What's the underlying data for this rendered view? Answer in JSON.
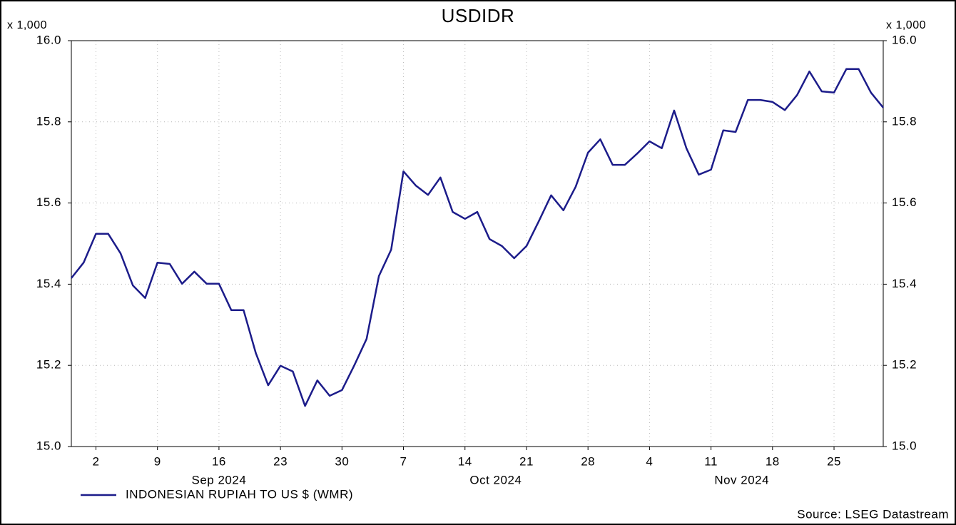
{
  "chart_data": {
    "type": "line",
    "title": "USDIDR",
    "y_unit_label": "x 1,000",
    "source": "Source: LSEG Datastream",
    "x": [
      "2024-08-29",
      "2024-08-30",
      "2024-09-02",
      "2024-09-03",
      "2024-09-04",
      "2024-09-05",
      "2024-09-06",
      "2024-09-09",
      "2024-09-10",
      "2024-09-11",
      "2024-09-12",
      "2024-09-13",
      "2024-09-16",
      "2024-09-17",
      "2024-09-18",
      "2024-09-19",
      "2024-09-20",
      "2024-09-23",
      "2024-09-24",
      "2024-09-25",
      "2024-09-26",
      "2024-09-27",
      "2024-09-30",
      "2024-10-01",
      "2024-10-02",
      "2024-10-03",
      "2024-10-04",
      "2024-10-07",
      "2024-10-08",
      "2024-10-09",
      "2024-10-10",
      "2024-10-11",
      "2024-10-14",
      "2024-10-15",
      "2024-10-16",
      "2024-10-17",
      "2024-10-18",
      "2024-10-21",
      "2024-10-22",
      "2024-10-23",
      "2024-10-24",
      "2024-10-25",
      "2024-10-28",
      "2024-10-29",
      "2024-10-30",
      "2024-10-31",
      "2024-11-01",
      "2024-11-04",
      "2024-11-05",
      "2024-11-06",
      "2024-11-07",
      "2024-11-08",
      "2024-11-11",
      "2024-11-12",
      "2024-11-13",
      "2024-11-14",
      "2024-11-15",
      "2024-11-18",
      "2024-11-19",
      "2024-11-20",
      "2024-11-21",
      "2024-11-22",
      "2024-11-25",
      "2024-11-26",
      "2024-11-27",
      "2024-11-28",
      "2024-11-29"
    ],
    "series": [
      {
        "name": "INDONESIAN RUPIAH TO US $ (WMR)",
        "color": "#1c1c8a",
        "values": [
          15.415,
          15.453,
          15.524,
          15.524,
          15.476,
          15.397,
          15.366,
          15.453,
          15.45,
          15.401,
          15.431,
          15.401,
          15.401,
          15.336,
          15.336,
          15.23,
          15.151,
          15.199,
          15.185,
          15.1,
          15.163,
          15.125,
          15.139,
          15.2,
          15.265,
          15.42,
          15.485,
          15.678,
          15.643,
          15.62,
          15.663,
          15.578,
          15.561,
          15.578,
          15.511,
          15.494,
          15.464,
          15.494,
          15.555,
          15.619,
          15.582,
          15.64,
          15.724,
          15.757,
          15.694,
          15.694,
          15.722,
          15.752,
          15.735,
          15.828,
          15.735,
          15.67,
          15.682,
          15.779,
          15.775,
          15.854,
          15.854,
          15.849,
          15.829,
          15.866,
          15.924,
          15.875,
          15.872,
          15.93,
          15.93,
          15.872,
          15.835
        ]
      }
    ],
    "xlim": [
      "2024-08-29",
      "2024-11-29"
    ],
    "xticks": [
      {
        "value": "2024-09-02",
        "label": "2"
      },
      {
        "value": "2024-09-09",
        "label": "9"
      },
      {
        "value": "2024-09-16",
        "label": "16"
      },
      {
        "value": "2024-09-23",
        "label": "23"
      },
      {
        "value": "2024-09-30",
        "label": "30"
      },
      {
        "value": "2024-10-07",
        "label": "7"
      },
      {
        "value": "2024-10-14",
        "label": "14"
      },
      {
        "value": "2024-10-21",
        "label": "21"
      },
      {
        "value": "2024-10-28",
        "label": "28"
      },
      {
        "value": "2024-11-04",
        "label": "4"
      },
      {
        "value": "2024-11-11",
        "label": "11"
      },
      {
        "value": "2024-11-18",
        "label": "18"
      },
      {
        "value": "2024-11-25",
        "label": "25"
      }
    ],
    "x_group_labels": [
      "Sep 2024",
      "Oct 2024",
      "Nov 2024"
    ],
    "ylim": [
      15,
      16
    ],
    "yticks": [
      {
        "value": 15,
        "label": "15.0"
      },
      15.2,
      15.4,
      15.6,
      15.8,
      {
        "value": 16,
        "label": "16.0"
      }
    ],
    "grid": true,
    "legend": "bottom-left"
  }
}
